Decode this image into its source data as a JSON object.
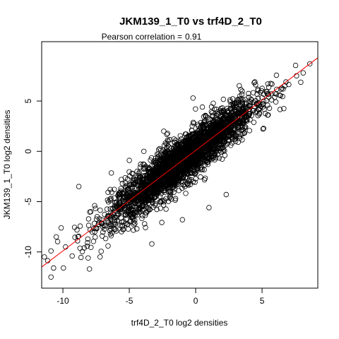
{
  "chart_data": {
    "type": "scatter",
    "title": "JKM139_1_T0 vs trf4D_2_T0",
    "subtitle_label": "Pearson correlation = ",
    "subtitle_value": "0.91",
    "xlabel": "trf4D_2_T0 log2 densities",
    "ylabel": "JKM139_1_T0 log2 densities",
    "xlim": [
      -11.6,
      9.2
    ],
    "ylim": [
      -13.6,
      10.9
    ],
    "xticks": [
      -10,
      -5,
      0,
      5
    ],
    "yticks": [
      -10,
      -5,
      0,
      5
    ],
    "grid": false,
    "legend": "none",
    "point_color": "#000000",
    "fit_line": {
      "color": "#ff0000",
      "slope": 1.0,
      "intercept": 0.1
    },
    "n_points": 3000,
    "pearson_r": 0.91,
    "outliers": [
      [
        -11.4,
        -10.5
      ],
      [
        -10.9,
        -9.9
      ],
      [
        -10.7,
        -11.6
      ],
      [
        -10.9,
        -12.5
      ],
      [
        -10.5,
        -8.5
      ],
      [
        -9.8,
        -9.5
      ],
      [
        -9.3,
        -10.4
      ],
      [
        -8.0,
        -11.7
      ],
      [
        -8.1,
        -10.6
      ],
      [
        -7.2,
        -10.5
      ],
      [
        -6.6,
        -9.4
      ],
      [
        -7.6,
        -8.0
      ],
      [
        -8.9,
        -8.9
      ],
      [
        -8.8,
        -3.5
      ],
      [
        -7.9,
        -6.0
      ],
      [
        -6.3,
        -8.1
      ],
      [
        -5.6,
        -2.8
      ],
      [
        -4.7,
        -6.5
      ],
      [
        -3.3,
        -9.2
      ],
      [
        -1.0,
        -6.8
      ],
      [
        -2.5,
        -1.9
      ],
      [
        2.3,
        -4.3
      ],
      [
        -0.2,
        5.3
      ],
      [
        0.5,
        4.4
      ],
      [
        -3.9,
        0.0
      ],
      [
        -5.0,
        -0.9
      ],
      [
        -0.4,
        -3.3
      ],
      [
        1.0,
        -5.6
      ],
      [
        2.2,
        -0.4
      ],
      [
        3.2,
        0.9
      ],
      [
        8.6,
        8.7
      ],
      [
        8.1,
        7.8
      ],
      [
        7.6,
        7.5
      ],
      [
        6.8,
        6.9
      ],
      [
        -2.0,
        -3.2
      ],
      [
        3.5,
        4.9
      ],
      [
        -2.4,
        2.0
      ]
    ]
  }
}
